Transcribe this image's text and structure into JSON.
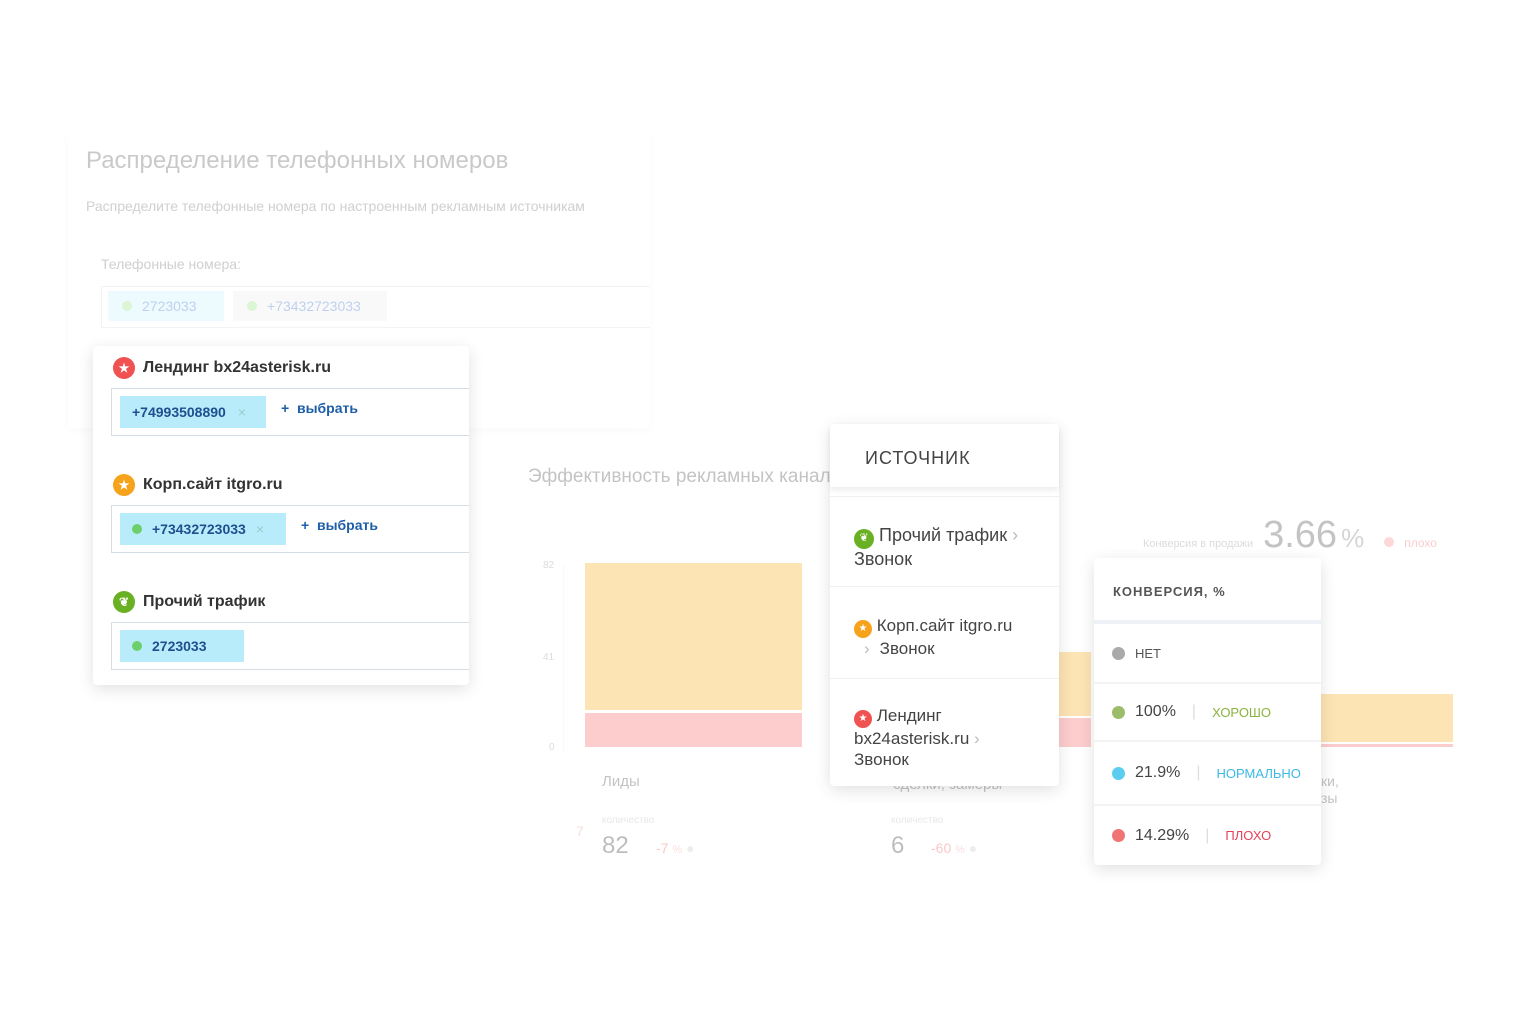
{
  "distribution": {
    "title": "Распределение телефонных номеров",
    "subtitle": "Распределите телефонные номера по настроенным рекламным источникам",
    "phones_label": "Телефонные номера:",
    "phones": [
      "2723033",
      "+73432723033"
    ]
  },
  "sources_card": {
    "sources": [
      {
        "name": "Лендинг bx24asterisk.ru",
        "icon": "star-icon",
        "color": "#f05252",
        "numbers": [
          "+74993508890"
        ],
        "has_remove": true,
        "pick_label": "выбрать"
      },
      {
        "name": "Корп.сайт itgro.ru",
        "icon": "star-icon",
        "color": "#f7a21b",
        "numbers": [
          "+73432723033"
        ],
        "has_remove": true,
        "pick_label": "выбрать"
      },
      {
        "name": "Прочий трафик",
        "icon": "leaf-icon",
        "color": "#6ab023",
        "numbers": [
          "2723033"
        ],
        "has_remove": false,
        "pick_label": ""
      }
    ],
    "remove_icon": "×",
    "plus_icon": "+"
  },
  "efficiency": {
    "title": "Эффективность рекламных канал",
    "y_ticks": [
      "82",
      "41",
      "0"
    ],
    "bars": [
      {
        "label": "Лиды",
        "total": 82,
        "lower": 15
      },
      {
        "label": "",
        "total": 43,
        "lower": 13
      },
      {
        "label": "",
        "total": 24,
        "lower": 1
      }
    ],
    "metrics": [
      {
        "caption": "количество",
        "value": "82",
        "delta": "-7",
        "unit": "%"
      },
      {
        "caption": "количество",
        "value": "6",
        "delta": "-60",
        "unit": "%"
      }
    ],
    "partial_left": "7",
    "partial_label_2": "сделки, замеры",
    "partial_right_1": "ки,",
    "partial_right_2": "зы",
    "conversion_label": "Конверсия в продажи",
    "conversion_value": "3.66",
    "conversion_unit": "%",
    "conversion_status": "плохо",
    "colors": {
      "upper": "#fde4b4",
      "lower": "#fdcccc"
    }
  },
  "source_popup": {
    "header": "ИСТОЧНИК",
    "items": [
      {
        "line1": "Прочий трафик",
        "line2": "Звонок",
        "color": "#6ab023",
        "icon": "leaf-icon"
      },
      {
        "line1": "Корп.сайт itgro.ru",
        "line2": "Звонок",
        "color": "#f7a21b",
        "icon": "star-icon"
      },
      {
        "line1": "Лендинг",
        "line1b": "bx24asterisk.ru",
        "line2": "Звонок",
        "color": "#f05252",
        "icon": "star-icon"
      }
    ]
  },
  "conversion_popup": {
    "header": "КОНВЕРСИЯ, %",
    "rows": [
      {
        "value": "НЕТ",
        "status": "",
        "color": "#aaaaaa",
        "status_color": ""
      },
      {
        "value": "100%",
        "status": "ХОРОШО",
        "color": "#9bbd6a",
        "status_color": "#8ab33f"
      },
      {
        "value": "21.9%",
        "status": "НОРМАЛЬНО",
        "color": "#5bcdf0",
        "status_color": "#3bb8e6"
      },
      {
        "value": "14.29%",
        "status": "ПЛОХО",
        "color": "#f07474",
        "status_color": "#e5435a"
      }
    ]
  }
}
